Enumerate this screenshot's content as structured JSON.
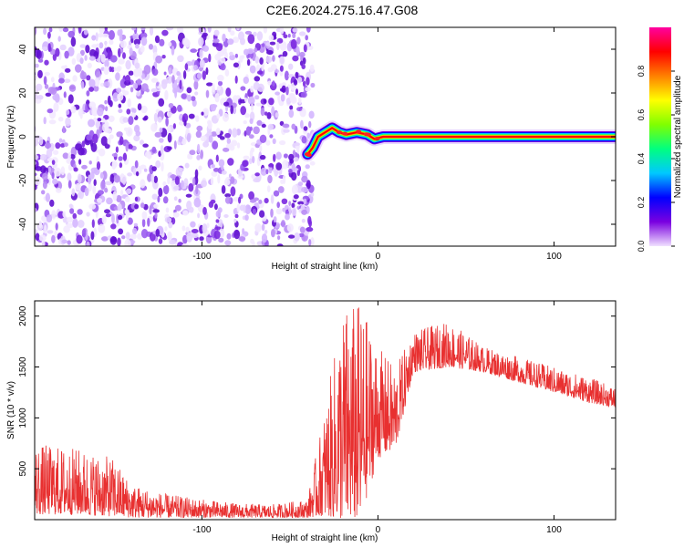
{
  "title": "C2E6.2024.275.16.47.G08",
  "chart_data": [
    {
      "type": "heatmap",
      "xlabel": "Height of straight line (km)",
      "ylabel": "Frequency (Hz)",
      "xlim": [
        -195,
        135
      ],
      "ylim": [
        -50,
        50
      ],
      "x_ticks": [
        -100,
        0,
        100
      ],
      "y_ticks": [
        -40,
        -20,
        0,
        20,
        40
      ],
      "grid": false,
      "description_values": {
        "noise_region_x": [
          -195,
          -38
        ],
        "signal_track": [
          {
            "x": -40,
            "y": -8
          },
          {
            "x": -37,
            "y": -5
          },
          {
            "x": -34,
            "y": 0
          },
          {
            "x": -30,
            "y": 2
          },
          {
            "x": -26,
            "y": 4
          },
          {
            "x": -22,
            "y": 2
          },
          {
            "x": -18,
            "y": 1
          },
          {
            "x": -12,
            "y": 2
          },
          {
            "x": -6,
            "y": 1
          },
          {
            "x": -2,
            "y": -1
          },
          {
            "x": 3,
            "y": 0
          },
          {
            "x": 10,
            "y": 0
          },
          {
            "x": 50,
            "y": 0
          },
          {
            "x": 90,
            "y": 0
          },
          {
            "x": 135,
            "y": 0
          }
        ]
      },
      "colorbar": {
        "label": "Normalized spectral amplitude",
        "range": [
          0,
          1
        ],
        "ticks": [
          0.0,
          0.2,
          0.4,
          0.6,
          0.8
        ],
        "colors": [
          "#f0e0ff",
          "#7a00e0",
          "#0000ff",
          "#00c8ff",
          "#00ff80",
          "#80ff00",
          "#ffff00",
          "#ff8000",
          "#ff0000",
          "#ff00a0"
        ]
      }
    },
    {
      "type": "line",
      "xlabel": "Height of straight line (km)",
      "ylabel": "SNR (10 * v/v)",
      "xlim": [
        -195,
        135
      ],
      "ylim": [
        0,
        2150
      ],
      "x_ticks": [
        -100,
        0,
        100
      ],
      "y_ticks": [
        500,
        1000,
        1500,
        2000
      ],
      "grid": false,
      "series": [
        {
          "color": "#e83030",
          "envelope": [
            {
              "x": -195,
              "lo": 50,
              "hi": 750
            },
            {
              "x": -170,
              "lo": 50,
              "hi": 700
            },
            {
              "x": -150,
              "lo": 30,
              "hi": 600
            },
            {
              "x": -140,
              "lo": 20,
              "hi": 350
            },
            {
              "x": -120,
              "lo": 20,
              "hi": 250
            },
            {
              "x": -100,
              "lo": 20,
              "hi": 200
            },
            {
              "x": -80,
              "lo": 20,
              "hi": 160
            },
            {
              "x": -60,
              "lo": 20,
              "hi": 150
            },
            {
              "x": -40,
              "lo": 20,
              "hi": 200
            },
            {
              "x": -30,
              "lo": 40,
              "hi": 1100
            },
            {
              "x": -20,
              "lo": 0,
              "hi": 2100
            },
            {
              "x": -10,
              "lo": 0,
              "hi": 2150
            },
            {
              "x": 0,
              "lo": 600,
              "hi": 1700
            },
            {
              "x": 10,
              "lo": 700,
              "hi": 1500
            },
            {
              "x": 20,
              "lo": 1450,
              "hi": 1850
            },
            {
              "x": 40,
              "lo": 1500,
              "hi": 1950
            },
            {
              "x": 60,
              "lo": 1450,
              "hi": 1700
            },
            {
              "x": 80,
              "lo": 1350,
              "hi": 1600
            },
            {
              "x": 100,
              "lo": 1250,
              "hi": 1500
            },
            {
              "x": 120,
              "lo": 1150,
              "hi": 1400
            },
            {
              "x": 135,
              "lo": 1100,
              "hi": 1300
            }
          ]
        }
      ]
    }
  ]
}
